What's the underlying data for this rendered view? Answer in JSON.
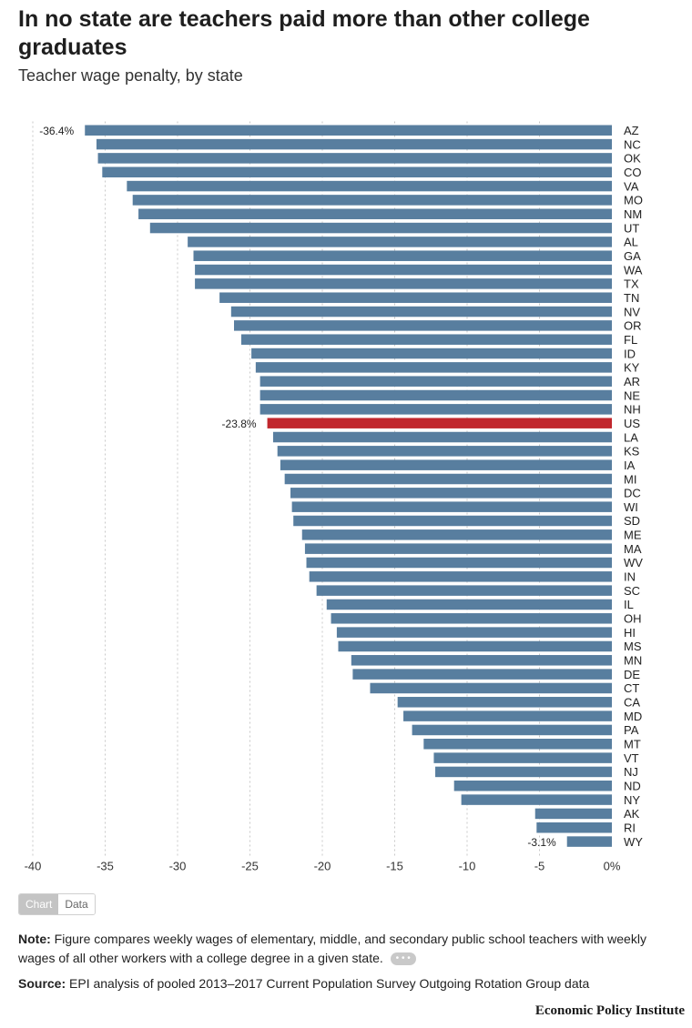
{
  "header": {
    "title": "In no state are teachers paid more than other college graduates",
    "subtitle": "Teacher wage penalty, by state"
  },
  "colors": {
    "bar": "#587e9f",
    "highlight": "#c1272d",
    "grid": "#c8c8c8"
  },
  "chart_data": {
    "type": "bar",
    "orientation": "horizontal",
    "categories": [
      "AZ",
      "NC",
      "OK",
      "CO",
      "VA",
      "MO",
      "NM",
      "UT",
      "AL",
      "GA",
      "WA",
      "TX",
      "TN",
      "NV",
      "OR",
      "FL",
      "ID",
      "KY",
      "AR",
      "NE",
      "NH",
      "US",
      "LA",
      "KS",
      "IA",
      "MI",
      "DC",
      "WI",
      "SD",
      "ME",
      "MA",
      "WV",
      "IN",
      "SC",
      "IL",
      "OH",
      "HI",
      "MS",
      "MN",
      "DE",
      "CT",
      "CA",
      "MD",
      "PA",
      "MT",
      "VT",
      "NJ",
      "ND",
      "NY",
      "AK",
      "RI",
      "WY"
    ],
    "values": [
      -36.4,
      -35.6,
      -35.5,
      -35.2,
      -33.5,
      -33.1,
      -32.7,
      -31.9,
      -29.3,
      -28.9,
      -28.8,
      -28.8,
      -27.1,
      -26.3,
      -26.1,
      -25.6,
      -24.9,
      -24.6,
      -24.3,
      -24.3,
      -24.3,
      -23.8,
      -23.4,
      -23.1,
      -22.9,
      -22.6,
      -22.2,
      -22.1,
      -22.0,
      -21.4,
      -21.2,
      -21.1,
      -20.9,
      -20.4,
      -19.7,
      -19.4,
      -19.0,
      -18.9,
      -18.0,
      -17.9,
      -16.7,
      -14.8,
      -14.4,
      -13.8,
      -13.0,
      -12.3,
      -12.2,
      -10.9,
      -10.4,
      -5.3,
      -5.2,
      -3.1
    ],
    "highlight": "US",
    "ylim": [
      -40,
      0
    ],
    "ticks": [
      -40,
      -35,
      -30,
      -25,
      -20,
      -15,
      -10,
      -5,
      0
    ],
    "tick_labels": [
      "-40",
      "-35",
      "-30",
      "-25",
      "-20",
      "-15",
      "-10",
      "-5",
      "0%"
    ],
    "data_labels": [
      {
        "category": "AZ",
        "text": "-36.4%"
      },
      {
        "category": "US",
        "text": "-23.8%"
      },
      {
        "category": "WY",
        "text": "-3.1%"
      }
    ],
    "grid": true,
    "legend": "none"
  },
  "controls": {
    "chart_label": "Chart",
    "data_label": "Data",
    "more_label": "• • •"
  },
  "footer": {
    "note_label": "Note:",
    "note_text": "Figure compares weekly wages of elementary, middle, and secondary public school teachers with weekly wages of all other workers with a college degree in a given state.",
    "source_label": "Source:",
    "source_text": "EPI analysis of pooled 2013–2017 Current Population Survey Outgoing Rotation Group data",
    "brand": "Economic Policy Institute"
  }
}
